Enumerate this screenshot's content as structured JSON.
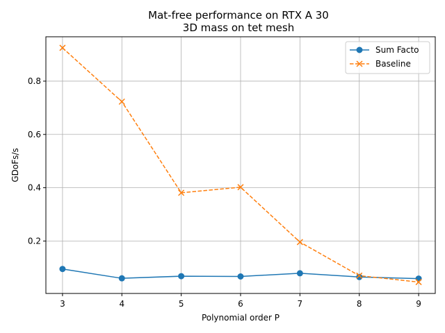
{
  "chart_data": {
    "type": "line",
    "title": "Mat-free performance on RTX A 30",
    "subtitle": "3D mass on tet mesh",
    "xlabel": "Polynomial order P",
    "ylabel": "GDoFs/s",
    "x": [
      3,
      4,
      5,
      6,
      7,
      8,
      9
    ],
    "x_ticks": [
      "3",
      "4",
      "5",
      "6",
      "7",
      "8",
      "9"
    ],
    "y_ticks": [
      "0.2",
      "0.4",
      "0.6",
      "0.8"
    ],
    "y_tick_values": [
      0.2,
      0.4,
      0.6,
      0.8
    ],
    "xlim": [
      2.72,
      9.28
    ],
    "ylim": [
      0.0032,
      0.9665
    ],
    "grid": true,
    "legend_position": "top-right",
    "series": [
      {
        "name": "Sum Facto",
        "color": "#1f77b4",
        "marker": "circle",
        "linestyle": "solid",
        "values": [
          0.095,
          0.06,
          0.068,
          0.067,
          0.079,
          0.065,
          0.059
        ]
      },
      {
        "name": "Baseline",
        "color": "#ff7f0e",
        "marker": "x",
        "linestyle": "dashed",
        "values": [
          0.925,
          0.723,
          0.381,
          0.402,
          0.196,
          0.07,
          0.046
        ]
      }
    ]
  }
}
